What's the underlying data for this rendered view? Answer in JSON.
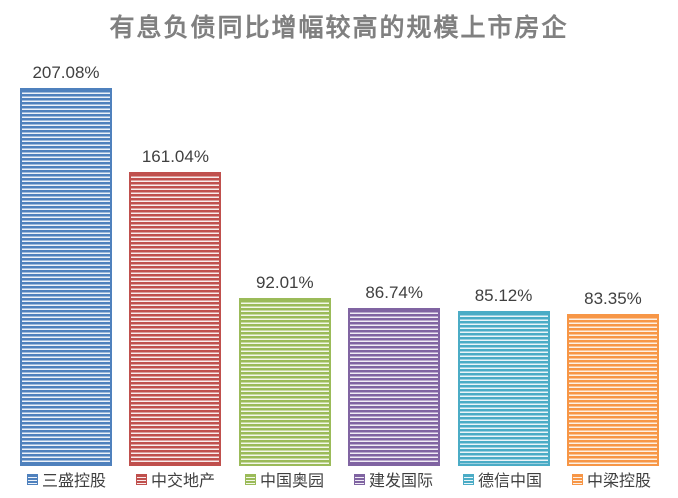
{
  "chart_data": {
    "type": "bar",
    "title": "有息负债同比增幅较高的规模上市房企",
    "categories": [
      "三盛控股",
      "中交地产",
      "中国奥园",
      "建发国际",
      "德信中国",
      "中梁控股"
    ],
    "values": [
      207.08,
      161.04,
      92.01,
      86.74,
      85.12,
      83.35
    ],
    "series": [
      {
        "name": "三盛控股",
        "value": 207.08,
        "label": "207.08%",
        "color": "#4F81BD",
        "tint": "#edf2f9"
      },
      {
        "name": "中交地产",
        "value": 161.04,
        "label": "161.04%",
        "color": "#C0504D",
        "tint": "#f8ecec"
      },
      {
        "name": "中国奥园",
        "value": 92.01,
        "label": "92.01%",
        "color": "#9BBB59",
        "tint": "#f3f7e9"
      },
      {
        "name": "建发国际",
        "value": 86.74,
        "label": "86.74%",
        "color": "#8064A2",
        "tint": "#f0ecf5"
      },
      {
        "name": "德信中国",
        "value": 85.12,
        "label": "85.12%",
        "color": "#4BACC6",
        "tint": "#ebf5f9"
      },
      {
        "name": "中梁控股",
        "value": 83.35,
        "label": "83.35%",
        "color": "#F79646",
        "tint": "#fdf0e4"
      }
    ],
    "xlabel": "",
    "ylabel": "",
    "grid": false,
    "axes_visible": false,
    "legend_position": "bottom",
    "value_labels": "above-bars",
    "bar_fill_pattern": "horizontal-stripes"
  },
  "styles": {
    "background": "#ffffff",
    "title_color": "#808080",
    "value_label_color": "#404040",
    "legend_text_color": "#404040"
  }
}
